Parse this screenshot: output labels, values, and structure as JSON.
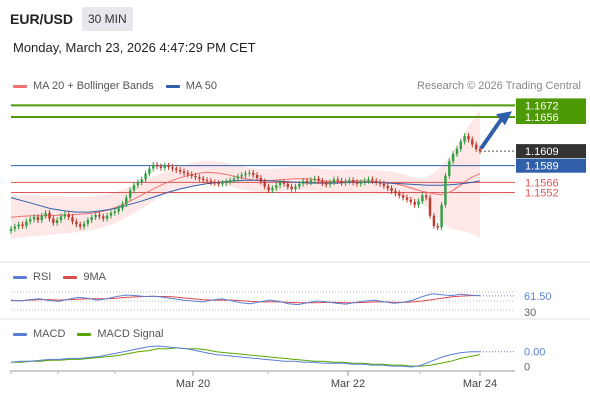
{
  "header": {
    "pair": "EUR/USD",
    "timeframe": "30 MIN",
    "datetime": "Monday, March 23, 2026 4:47:29 PM CET"
  },
  "legend": {
    "ma20": "MA 20 + Bollinger Bands",
    "ma50": "MA 50",
    "credit": "Research © 2026 Trading Central"
  },
  "rsi_legend": {
    "rsi": "RSI",
    "ma": "9MA"
  },
  "macd_legend": {
    "macd": "MACD",
    "signal": "MACD Signal"
  },
  "colors": {
    "ma20": "#f07070",
    "ma50": "#2f5faa",
    "bollinger_fill": "#fde3e3",
    "target": "#4e9a06",
    "pivot": "#2f5faa",
    "support": "#e05555",
    "arrow": "#2f5faa",
    "candle_up": "#2ea043",
    "candle_down": "#c0392b",
    "rsi": "#5b7fd6",
    "rsi_ma": "#d94a4a",
    "macd": "#5b7fd6",
    "macd_signal": "#58a600"
  },
  "chart_data": [
    {
      "type": "candlestick",
      "title": "EUR/USD",
      "timeframe": "30 MIN",
      "x_ticks": [
        "Mar 20",
        "Mar 22",
        "Mar 24"
      ],
      "ylim": [
        1.147,
        1.1685
      ],
      "last_price": 1.1609,
      "levels": [
        {
          "name": "target-2",
          "value": 1.1672,
          "label": "1.1672",
          "color": "#4e9a06"
        },
        {
          "name": "target-1",
          "value": 1.1656,
          "label": "1.1656",
          "color": "#4e9a06"
        },
        {
          "name": "pivot",
          "value": 1.1589,
          "label": "1.1589",
          "color": "#2f5faa"
        },
        {
          "name": "support-1",
          "value": 1.1566,
          "label": "1.1566",
          "color": "#e05555"
        },
        {
          "name": "support-2",
          "value": 1.1552,
          "label": "1.1552",
          "color": "#e05555"
        }
      ],
      "closes": [
        1.1502,
        1.1505,
        1.1508,
        1.1506,
        1.1512,
        1.1515,
        1.1518,
        1.1514,
        1.152,
        1.1524,
        1.1516,
        1.151,
        1.1514,
        1.1519,
        1.1522,
        1.1518,
        1.1512,
        1.1508,
        1.1505,
        1.1509,
        1.1514,
        1.1518,
        1.1521,
        1.1519,
        1.1516,
        1.152,
        1.1524,
        1.1526,
        1.153,
        1.1536,
        1.1545,
        1.1555,
        1.1562,
        1.1566,
        1.157,
        1.1578,
        1.1585,
        1.159,
        1.1588,
        1.1586,
        1.1589,
        1.1587,
        1.1585,
        1.1583,
        1.1581,
        1.1579,
        1.1577,
        1.1575,
        1.1573,
        1.1571,
        1.1569,
        1.1568,
        1.1566,
        1.1565,
        1.1564,
        1.1565,
        1.1567,
        1.1569,
        1.1571,
        1.1574,
        1.1576,
        1.1578,
        1.1579,
        1.1576,
        1.1572,
        1.1567,
        1.156,
        1.1555,
        1.1558,
        1.1562,
        1.1566,
        1.1564,
        1.156,
        1.1557,
        1.156,
        1.1564,
        1.1568,
        1.1566,
        1.1569,
        1.1571,
        1.1568,
        1.1565,
        1.1563,
        1.1566,
        1.157,
        1.1568,
        1.1565,
        1.1567,
        1.1569,
        1.1566,
        1.1564,
        1.1566,
        1.1568,
        1.157,
        1.1568,
        1.1566,
        1.1564,
        1.1561,
        1.1558,
        1.1554,
        1.1551,
        1.1548,
        1.1545,
        1.1542,
        1.1539,
        1.1535,
        1.154,
        1.1548,
        1.1545,
        1.152,
        1.1506,
        1.1504,
        1.1535,
        1.1575,
        1.1595,
        1.1605,
        1.1612,
        1.1622,
        1.163,
        1.1625,
        1.1618,
        1.1612,
        1.1609
      ],
      "ma20": [
        1.1518,
        1.1519,
        1.152,
        1.152,
        1.152,
        1.1521,
        1.1521,
        1.1522,
        1.1523,
        1.1525,
        1.1528,
        1.1533,
        1.1539,
        1.1546,
        1.1553,
        1.156,
        1.1566,
        1.1571,
        1.1575,
        1.1578,
        1.158,
        1.1579,
        1.1577,
        1.1574,
        1.1571,
        1.1569,
        1.1568,
        1.1569,
        1.157,
        1.1571,
        1.1571,
        1.157,
        1.1568,
        1.1567,
        1.1567,
        1.1568,
        1.1568,
        1.1567,
        1.1566,
        1.1565,
        1.1562,
        1.1558,
        1.1554,
        1.1551,
        1.1549,
        1.1553,
        1.1562,
        1.1572,
        1.1578
      ],
      "ma50": [
        1.1545,
        1.154,
        1.1535,
        1.153,
        1.1527,
        1.1525,
        1.1525,
        1.1527,
        1.153,
        1.1535,
        1.154,
        1.1546,
        1.1552,
        1.1557,
        1.1561,
        1.1564,
        1.1566,
        1.1568,
        1.1569,
        1.1569,
        1.1568,
        1.1567,
        1.1566,
        1.1565,
        1.1565,
        1.1565,
        1.1566,
        1.1566,
        1.1566,
        1.1565,
        1.1564,
        1.1563,
        1.1562,
        1.1562,
        1.1563,
        1.1565,
        1.1568
      ]
    },
    {
      "type": "line",
      "title": "RSI",
      "series": [
        {
          "name": "RSI"
        },
        {
          "name": "9MA"
        }
      ],
      "last_label": "61.50",
      "axis_labels": [
        "30"
      ],
      "rsi": [
        52,
        50,
        53,
        55,
        51,
        49,
        54,
        58,
        56,
        52,
        55,
        60,
        63,
        62,
        60,
        61,
        58,
        55,
        52,
        50,
        48,
        52,
        55,
        51,
        46,
        44,
        48,
        52,
        49,
        44,
        42,
        46,
        50,
        48,
        45,
        43,
        47,
        50,
        52,
        48,
        45,
        47,
        52,
        60,
        66,
        64,
        62,
        65,
        63,
        61.5
      ],
      "rsi_ma": [
        51,
        51,
        52,
        53,
        53,
        52,
        53,
        54,
        55,
        55,
        55,
        56,
        58,
        59,
        60,
        60,
        60,
        59,
        57,
        55,
        53,
        52,
        52,
        52,
        51,
        49,
        48,
        48,
        48,
        47,
        46,
        46,
        46,
        47,
        47,
        46,
        46,
        47,
        48,
        48,
        47,
        47,
        48,
        50,
        53,
        56,
        59,
        61,
        62,
        62
      ]
    },
    {
      "type": "line",
      "title": "MACD",
      "series": [
        {
          "name": "MACD"
        },
        {
          "name": "MACD Signal"
        }
      ],
      "last_label": "0.00",
      "axis_labels": [
        "0"
      ],
      "macd": [
        -2,
        -1,
        -1,
        0,
        1,
        1,
        2,
        2,
        3,
        4,
        6,
        8,
        10,
        12,
        14,
        15,
        14,
        13,
        12,
        10,
        8,
        6,
        5,
        4,
        3,
        2,
        1,
        0,
        -1,
        -1,
        -2,
        -2,
        -3,
        -3,
        -3,
        -4,
        -4,
        -5,
        -5,
        -6,
        -6,
        -7,
        -5,
        -1,
        3,
        6,
        8,
        9,
        9
      ],
      "signal": [
        -2,
        -2,
        -1,
        -1,
        0,
        0,
        1,
        1,
        2,
        3,
        4,
        5,
        7,
        9,
        10,
        12,
        12,
        13,
        12,
        12,
        11,
        9,
        8,
        7,
        6,
        5,
        4,
        3,
        2,
        1,
        0,
        -1,
        -1,
        -2,
        -2,
        -3,
        -3,
        -4,
        -4,
        -5,
        -5,
        -6,
        -6,
        -5,
        -3,
        -1,
        2,
        4,
        6
      ]
    }
  ]
}
